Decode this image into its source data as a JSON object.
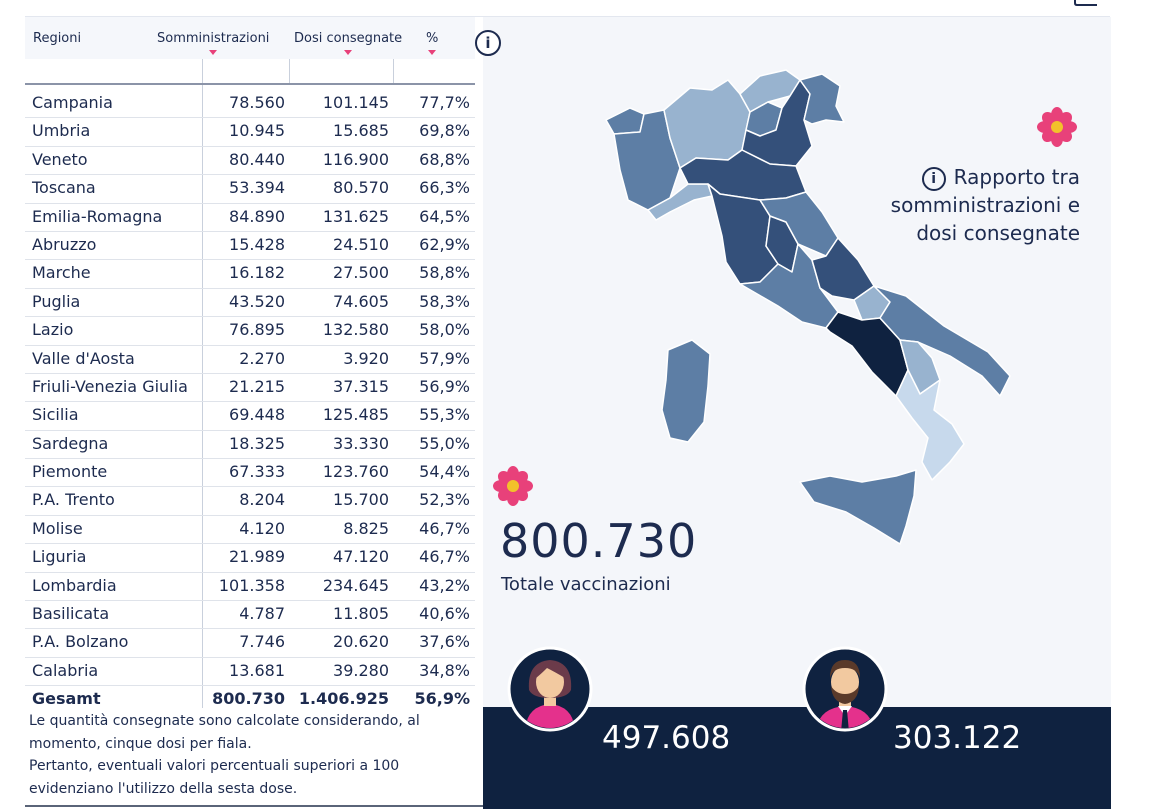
{
  "table": {
    "headers": {
      "region": "Regioni",
      "administrations": "Somministrazioni",
      "doses_delivered": "Dosi consegnate",
      "percent": "%"
    },
    "rows": [
      {
        "region": "Campania",
        "administrations": "78.560",
        "doses": "101.145",
        "percent": "77,7%"
      },
      {
        "region": "Umbria",
        "administrations": "10.945",
        "doses": "15.685",
        "percent": "69,8%"
      },
      {
        "region": "Veneto",
        "administrations": "80.440",
        "doses": "116.900",
        "percent": "68,8%"
      },
      {
        "region": "Toscana",
        "administrations": "53.394",
        "doses": "80.570",
        "percent": "66,3%"
      },
      {
        "region": "Emilia-Romagna",
        "administrations": "84.890",
        "doses": "131.625",
        "percent": "64,5%"
      },
      {
        "region": "Abruzzo",
        "administrations": "15.428",
        "doses": "24.510",
        "percent": "62,9%"
      },
      {
        "region": "Marche",
        "administrations": "16.182",
        "doses": "27.500",
        "percent": "58,8%"
      },
      {
        "region": "Puglia",
        "administrations": "43.520",
        "doses": "74.605",
        "percent": "58,3%"
      },
      {
        "region": "Lazio",
        "administrations": "76.895",
        "doses": "132.580",
        "percent": "58,0%"
      },
      {
        "region": "Valle d'Aosta",
        "administrations": "2.270",
        "doses": "3.920",
        "percent": "57,9%"
      },
      {
        "region": "Friuli-Venezia Giulia",
        "administrations": "21.215",
        "doses": "37.315",
        "percent": "56,9%"
      },
      {
        "region": "Sicilia",
        "administrations": "69.448",
        "doses": "125.485",
        "percent": "55,3%"
      },
      {
        "region": "Sardegna",
        "administrations": "18.325",
        "doses": "33.330",
        "percent": "55,0%"
      },
      {
        "region": "Piemonte",
        "administrations": "67.333",
        "doses": "123.760",
        "percent": "54,4%"
      },
      {
        "region": "P.A. Trento",
        "administrations": "8.204",
        "doses": "15.700",
        "percent": "52,3%"
      },
      {
        "region": "Molise",
        "administrations": "4.120",
        "doses": "8.825",
        "percent": "46,7%"
      },
      {
        "region": "Liguria",
        "administrations": "21.989",
        "doses": "47.120",
        "percent": "46,7%"
      },
      {
        "region": "Lombardia",
        "administrations": "101.358",
        "doses": "234.645",
        "percent": "43,2%"
      },
      {
        "region": "Basilicata",
        "administrations": "4.787",
        "doses": "11.805",
        "percent": "40,6%"
      },
      {
        "region": "P.A. Bolzano",
        "administrations": "7.746",
        "doses": "20.620",
        "percent": "37,6%"
      },
      {
        "region": "Calabria",
        "administrations": "13.681",
        "doses": "39.280",
        "percent": "34,8%"
      }
    ],
    "total": {
      "region": "Gesamt",
      "administrations": "800.730",
      "doses": "1.406.925",
      "percent": "56,9%"
    }
  },
  "note": {
    "line1": "Le quantità consegnate sono calcolate considerando, al momento, cinque dosi per fiala.",
    "line2": "Pertanto, eventuali valori percentuali superiori a 100 evidenziano l'utilizzo della sesta dose."
  },
  "info_icon": "i",
  "map_legend": {
    "icon": "i",
    "text": "Rapporto tra somministrazioni e dosi consegnate"
  },
  "total_vaccinations": {
    "value": "800.730",
    "label": "Totale vaccinazioni"
  },
  "gender": {
    "women": {
      "value": "497.608",
      "icon": "woman-avatar-icon"
    },
    "men": {
      "value": "303.122",
      "icon": "man-avatar-icon"
    }
  },
  "colors": {
    "text": "#1d2b4f",
    "dark_band": "#0f2240",
    "accent_pink": "#e8417a",
    "map_darkest": "#0f2240",
    "map_dark": "#34507a",
    "map_mid": "#5d7ea5",
    "map_light": "#98b3cf",
    "map_lightest": "#c7d9ec"
  }
}
